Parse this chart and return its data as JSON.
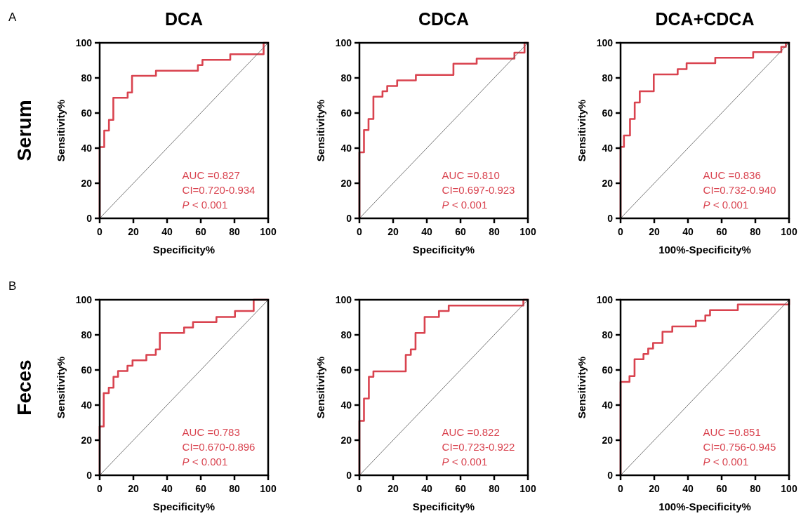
{
  "chart_data": [
    {
      "type": "step",
      "title": "DCA",
      "xlabel": "Specificity%",
      "ylabel": "Sensitivity%",
      "annotations": [
        "A",
        "Serum",
        "AUC =0.827",
        "CI=0.720-0.934",
        "P < 0.001"
      ],
      "xlim": [
        0,
        100
      ],
      "ylim": [
        0,
        100
      ],
      "xticks": [
        0,
        20,
        40,
        60,
        80,
        100
      ],
      "yticks": [
        0,
        20,
        40,
        60,
        80,
        100
      ],
      "series": [
        {
          "color": "#d9434f",
          "x": [
            0,
            0,
            2.7,
            5.5,
            8.1,
            16.6,
            19.2,
            33.4,
            58.3,
            61,
            77.5,
            97.3,
            100
          ],
          "values": [
            0,
            40.6,
            50,
            56.1,
            68.7,
            71.7,
            81.2,
            84.1,
            87.3,
            90.3,
            93.5,
            100,
            100
          ]
        },
        {
          "type": "line",
          "color": "#555555",
          "x": [
            0,
            100
          ],
          "values": [
            0,
            100
          ]
        }
      ]
    },
    {
      "type": "step",
      "title": "CDCA",
      "xlabel": "Specificity%",
      "ylabel": "Sensitivity%",
      "annotations": [
        "AUC =0.810",
        "CI=0.697-0.923",
        "P < 0.001"
      ],
      "xlim": [
        0,
        100
      ],
      "ylim": [
        0,
        100
      ],
      "xticks": [
        0,
        20,
        40,
        60,
        80,
        100
      ],
      "yticks": [
        0,
        20,
        40,
        60,
        80,
        100
      ],
      "series": [
        {
          "color": "#d9434f",
          "x": [
            0,
            0,
            2.7,
            5.4,
            8.3,
            13.7,
            16.5,
            22.4,
            33.5,
            55.8,
            69.6,
            92,
            98,
            100
          ],
          "values": [
            0,
            37.6,
            50.3,
            56.6,
            69.3,
            72.4,
            75.4,
            78.6,
            81.7,
            88.1,
            91,
            94.4,
            100,
            100
          ]
        },
        {
          "type": "line",
          "color": "#555555",
          "x": [
            0,
            100
          ],
          "values": [
            0,
            100
          ]
        }
      ]
    },
    {
      "type": "step",
      "title": "DCA+CDCA",
      "xlabel": "100%-Specificity%",
      "ylabel": "Sensitivity%",
      "annotations": [
        "AUC =0.836",
        "CI=0.732-0.940",
        "P < 0.001"
      ],
      "xlim": [
        0,
        100
      ],
      "ylim": [
        0,
        100
      ],
      "xticks": [
        0,
        20,
        40,
        60,
        80,
        100
      ],
      "yticks": [
        0,
        20,
        40,
        60,
        80,
        100
      ],
      "series": [
        {
          "color": "#d9434f",
          "x": [
            0,
            0,
            2,
            5.6,
            8.4,
            11.4,
            19.7,
            33.9,
            39.2,
            56.2,
            78.7,
            95.4,
            98.1,
            100
          ],
          "values": [
            0,
            40.7,
            47.2,
            56.6,
            66,
            72.4,
            82,
            85,
            88.4,
            91.5,
            94.7,
            97.7,
            100,
            100
          ]
        },
        {
          "type": "line",
          "color": "#555555",
          "x": [
            0,
            100
          ],
          "values": [
            0,
            100
          ]
        }
      ]
    },
    {
      "type": "step",
      "xlabel": "Specificity%",
      "ylabel": "Sensitivity%",
      "annotations": [
        "B",
        "Feces",
        "AUC =0.783",
        "CI=0.670-0.896",
        "P < 0.001"
      ],
      "xlim": [
        0,
        100
      ],
      "ylim": [
        0,
        100
      ],
      "xticks": [
        0,
        20,
        40,
        60,
        80,
        100
      ],
      "yticks": [
        0,
        20,
        40,
        60,
        80,
        100
      ],
      "series": [
        {
          "color": "#d9434f",
          "x": [
            0,
            0,
            2.4,
            5.4,
            8.2,
            10.9,
            16.5,
            19.5,
            27.7,
            33.3,
            35.7,
            50.1,
            55.4,
            69.3,
            80.3,
            91.4,
            100
          ],
          "values": [
            0,
            27.8,
            46.8,
            49.9,
            56.1,
            59.4,
            62.4,
            65.5,
            68.6,
            71.7,
            81.1,
            84.2,
            87.3,
            90.2,
            93.6,
            100,
            100
          ]
        },
        {
          "type": "line",
          "color": "#555555",
          "x": [
            0,
            100
          ],
          "values": [
            0,
            100
          ]
        }
      ]
    },
    {
      "type": "step",
      "xlabel": "Specificity%",
      "ylabel": "Sensitivity%",
      "annotations": [
        "AUC =0.822",
        "CI=0.723-0.922",
        "P < 0.001"
      ],
      "xlim": [
        0,
        100
      ],
      "ylim": [
        0,
        100
      ],
      "xticks": [
        0,
        20,
        40,
        60,
        80,
        100
      ],
      "yticks": [
        0,
        20,
        40,
        60,
        80,
        100
      ],
      "series": [
        {
          "color": "#d9434f",
          "x": [
            0,
            0,
            2.7,
            5.6,
            8.3,
            27.5,
            30.5,
            33.3,
            38.7,
            47.2,
            53,
            97.3,
            100
          ],
          "values": [
            0,
            31,
            43.7,
            56.1,
            59.2,
            68.6,
            71.7,
            81.1,
            90.2,
            93.6,
            96.7,
            100,
            100
          ]
        },
        {
          "type": "line",
          "color": "#555555",
          "x": [
            0,
            100
          ],
          "values": [
            0,
            100
          ]
        }
      ]
    },
    {
      "type": "step",
      "xlabel": "100%-Specificity%",
      "ylabel": "Sensitivity%",
      "annotations": [
        "AUC =0.851",
        "CI=0.756-0.945",
        "P < 0.001"
      ],
      "xlim": [
        0,
        100
      ],
      "ylim": [
        0,
        100
      ],
      "xticks": [
        0,
        20,
        40,
        60,
        80,
        100
      ],
      "yticks": [
        0,
        20,
        40,
        60,
        80,
        100
      ],
      "series": [
        {
          "color": "#d9434f",
          "x": [
            0,
            0,
            5.3,
            8.3,
            13.6,
            16.4,
            19.3,
            24.9,
            30.7,
            44.7,
            50.3,
            53.1,
            69.6,
            100
          ],
          "values": [
            0,
            53.2,
            56.5,
            66.1,
            69.1,
            72.2,
            75.4,
            81.8,
            84.8,
            88,
            91.1,
            94.1,
            97.3,
            100
          ]
        },
        {
          "type": "line",
          "color": "#555555",
          "x": [
            0,
            100
          ],
          "values": [
            0,
            100
          ]
        }
      ]
    }
  ]
}
